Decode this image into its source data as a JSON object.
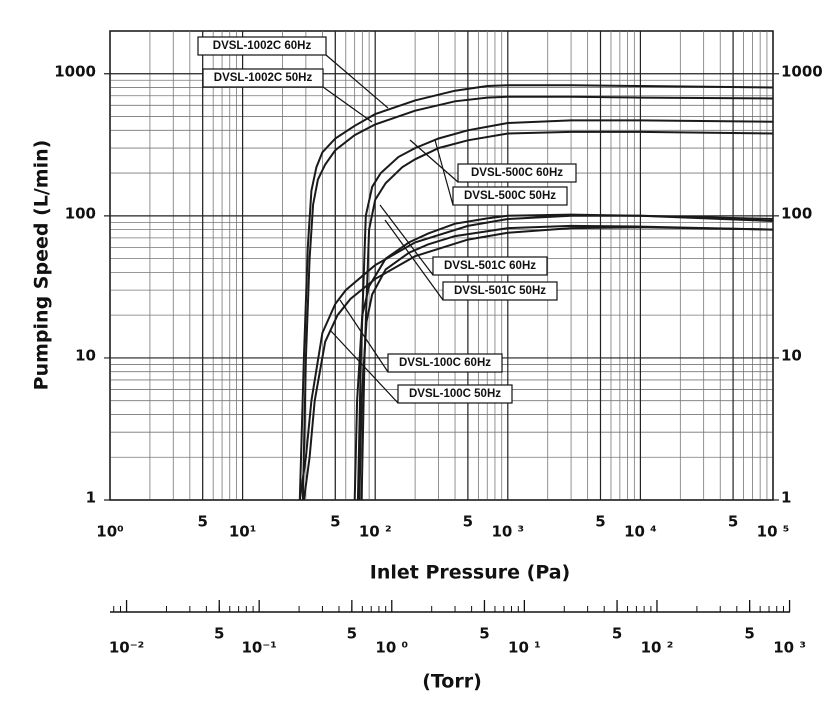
{
  "chart_data": {
    "type": "line",
    "ylabel": "Pumping  Speed   (L/min)",
    "xlabel": "Inlet  Pressure    (Pa)",
    "x2label": "(Torr)",
    "xscale": "log",
    "yscale": "log",
    "xlim": [
      1,
      100000
    ],
    "ylim": [
      1,
      2000
    ],
    "y2lim": [
      1,
      2000
    ],
    "x2lim": [
      0.0075,
      1000
    ],
    "grid": true,
    "minor_grid": true,
    "color": "#1a1a1a",
    "xticks": [
      {
        "value": 1,
        "label": "10⁰"
      },
      5,
      {
        "value": 10,
        "label": "10¹"
      },
      {
        "value": 50,
        "label": "5"
      },
      {
        "value": 100,
        "label": "10 ²"
      },
      {
        "value": 500,
        "label": "5"
      },
      {
        "value": 1000,
        "label": "10 ³"
      },
      {
        "value": 5000,
        "label": "5"
      },
      {
        "value": 10000,
        "label": "10 ⁴"
      },
      {
        "value": 50000,
        "label": "5"
      },
      {
        "value": 100000,
        "label": "10 ⁵"
      }
    ],
    "yticks": [
      1,
      10,
      100,
      1000
    ],
    "y2ticks": [
      1,
      10,
      100,
      1000
    ],
    "x2ticks": [
      {
        "value": 0.01,
        "label": "10⁻²"
      },
      {
        "value": 0.05,
        "label": "5"
      },
      {
        "value": 0.1,
        "label": "10⁻¹"
      },
      {
        "value": 0.5,
        "label": "5"
      },
      {
        "value": 1,
        "label": "10 ⁰"
      },
      5,
      {
        "value": 10,
        "label": "10 ¹"
      },
      {
        "value": 50,
        "label": "5"
      },
      {
        "value": 100,
        "label": "10 ²"
      },
      {
        "value": 500,
        "label": "5"
      },
      {
        "value": 1000,
        "label": "10 ³"
      }
    ],
    "series": [
      {
        "name": "DVSL-1002C 60Hz",
        "color": "#1a1a1a",
        "x": [
          27,
          29,
          31,
          33,
          36,
          40,
          50,
          70,
          100,
          200,
          400,
          700,
          1000,
          3000,
          10000,
          100000
        ],
        "values": [
          1,
          10,
          60,
          150,
          220,
          280,
          350,
          430,
          520,
          650,
          760,
          820,
          830,
          830,
          820,
          800
        ]
      },
      {
        "name": "DVSL-1002C 50Hz",
        "color": "#1a1a1a",
        "x": [
          28.5,
          30,
          32,
          34,
          37,
          42,
          50,
          70,
          100,
          200,
          400,
          700,
          1000,
          3000,
          10000,
          100000
        ],
        "values": [
          1,
          10,
          50,
          120,
          180,
          230,
          290,
          370,
          440,
          550,
          640,
          680,
          690,
          690,
          680,
          670
        ]
      },
      {
        "name": "DVSL-500C 60Hz",
        "color": "#1a1a1a",
        "x": [
          74,
          78,
          85,
          95,
          110,
          150,
          200,
          300,
          500,
          1000,
          3000,
          10000,
          100000
        ],
        "values": [
          1,
          10,
          100,
          160,
          200,
          260,
          300,
          350,
          400,
          450,
          470,
          470,
          460
        ]
      },
      {
        "name": "DVSL-500C 50Hz",
        "color": "#1a1a1a",
        "x": [
          79,
          83,
          90,
          100,
          120,
          160,
          200,
          300,
          500,
          1000,
          3000,
          10000,
          100000
        ],
        "values": [
          1,
          10,
          80,
          130,
          170,
          220,
          250,
          300,
          340,
          380,
          390,
          390,
          380
        ]
      },
      {
        "name": "DVSL-501C 60Hz",
        "color": "#1a1a1a",
        "x": [
          70,
          73,
          80,
          90,
          120,
          180,
          250,
          400,
          700,
          1000,
          3000,
          10000,
          100000
        ],
        "values": [
          1,
          5,
          20,
          32,
          50,
          65,
          75,
          88,
          96,
          100,
          102,
          100,
          92
        ]
      },
      {
        "name": "DVSL-501C 50Hz",
        "color": "#1a1a1a",
        "x": [
          76,
          79,
          86,
          95,
          120,
          180,
          250,
          400,
          700,
          1000,
          3000,
          10000,
          100000
        ],
        "values": [
          1,
          5,
          18,
          28,
          42,
          55,
          63,
          72,
          78,
          82,
          85,
          84,
          80
        ]
      },
      {
        "name": "DVSL-100C 60Hz",
        "color": "#1a1a1a",
        "x": [
          27,
          30,
          33,
          40,
          50,
          60,
          100,
          200,
          500,
          1000,
          3000,
          10000,
          100000
        ],
        "values": [
          1,
          2,
          5,
          15,
          24,
          30,
          45,
          65,
          85,
          95,
          100,
          100,
          95
        ]
      },
      {
        "name": "DVSL-100C 50Hz",
        "color": "#1a1a1a",
        "x": [
          29,
          32,
          35,
          42,
          52,
          65,
          100,
          200,
          500,
          1000,
          3000,
          10000,
          100000
        ],
        "values": [
          1,
          2,
          5,
          13,
          20,
          26,
          36,
          52,
          68,
          76,
          82,
          83,
          80
        ]
      }
    ]
  }
}
